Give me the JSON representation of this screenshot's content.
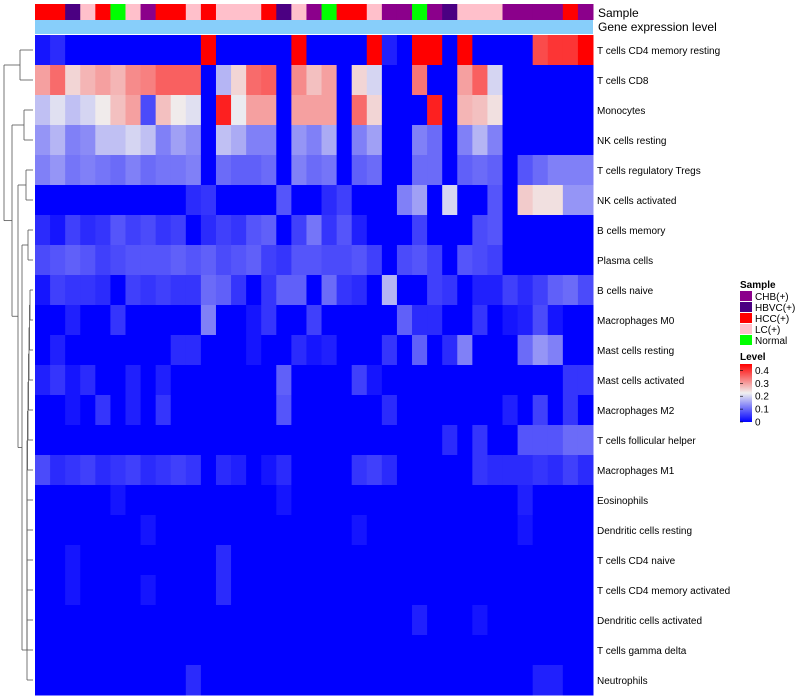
{
  "chart_data": {
    "type": "heatmap",
    "annotation_titles": {
      "sample": "Sample",
      "expression": "Gene expression level"
    },
    "samples": [
      "HCC(+)",
      "HCC(+)",
      "HBVC(+)",
      "LC(+)",
      "HCC(+)",
      "Normal",
      "LC(+)",
      "CHB(+)",
      "HCC(+)",
      "HCC(+)",
      "LC(+)",
      "HCC(+)",
      "LC(+)",
      "LC(+)",
      "LC(+)",
      "HCC(+)",
      "HBVC(+)",
      "LC(+)",
      "CHB(+)",
      "Normal",
      "HCC(+)",
      "HCC(+)",
      "LC(+)",
      "CHB(+)",
      "CHB(+)",
      "Normal",
      "CHB(+)",
      "HBVC(+)",
      "LC(+)",
      "LC(+)",
      "LC(+)",
      "CHB(+)",
      "CHB(+)",
      "CHB(+)",
      "CHB(+)",
      "HCC(+)",
      "CHB(+)"
    ],
    "rows": [
      {
        "name": "T cells CD4 memory resting",
        "values": [
          0.02,
          0.04,
          0.0,
          0.0,
          0.0,
          0.0,
          0.0,
          0.0,
          0.0,
          0.0,
          0.0,
          0.45,
          0.0,
          0.0,
          0.0,
          0.0,
          0.0,
          0.45,
          0.0,
          0.0,
          0.0,
          0.0,
          0.45,
          0.03,
          0.0,
          0.45,
          0.45,
          0.0,
          0.45,
          0.0,
          0.0,
          0.0,
          0.0,
          0.38,
          0.4,
          0.4,
          0.45
        ]
      },
      {
        "name": "T cells CD8",
        "values": [
          0.3,
          0.35,
          0.25,
          0.28,
          0.3,
          0.28,
          0.32,
          0.33,
          0.36,
          0.36,
          0.36,
          0.0,
          0.17,
          0.25,
          0.35,
          0.36,
          0.0,
          0.32,
          0.27,
          0.3,
          0.0,
          0.25,
          0.2,
          0.0,
          0.0,
          0.34,
          0.0,
          0.0,
          0.3,
          0.36,
          0.2,
          0.0,
          0.0,
          0.0,
          0.0,
          0.0,
          0.0
        ]
      },
      {
        "name": "Monocytes",
        "values": [
          0.18,
          0.21,
          0.18,
          0.2,
          0.23,
          0.27,
          0.3,
          0.07,
          0.27,
          0.23,
          0.21,
          0.0,
          0.42,
          0.22,
          0.3,
          0.3,
          0.0,
          0.3,
          0.3,
          0.3,
          0.0,
          0.35,
          0.25,
          0.0,
          0.0,
          0.0,
          0.42,
          0.0,
          0.28,
          0.27,
          0.24,
          0.0,
          0.0,
          0.0,
          0.0,
          0.0,
          0.0
        ]
      },
      {
        "name": "NK cells resting",
        "values": [
          0.14,
          0.17,
          0.12,
          0.13,
          0.18,
          0.18,
          0.2,
          0.18,
          0.12,
          0.15,
          0.13,
          0.0,
          0.18,
          0.16,
          0.12,
          0.12,
          0.0,
          0.14,
          0.12,
          0.16,
          0.0,
          0.12,
          0.15,
          0.0,
          0.0,
          0.12,
          0.1,
          0.0,
          0.12,
          0.17,
          0.12,
          0.0,
          0.0,
          0.0,
          0.0,
          0.0,
          0.0
        ]
      },
      {
        "name": "T cells regulatory  Tregs",
        "values": [
          0.12,
          0.14,
          0.11,
          0.12,
          0.11,
          0.1,
          0.12,
          0.1,
          0.11,
          0.11,
          0.12,
          0.0,
          0.1,
          0.09,
          0.09,
          0.1,
          0.0,
          0.12,
          0.1,
          0.11,
          0.0,
          0.09,
          0.1,
          0.0,
          0.0,
          0.1,
          0.1,
          0.0,
          0.09,
          0.1,
          0.09,
          0.0,
          0.08,
          0.1,
          0.12,
          0.12,
          0.12
        ]
      },
      {
        "name": "NK cells activated",
        "values": [
          0.0,
          0.0,
          0.0,
          0.0,
          0.0,
          0.0,
          0.0,
          0.0,
          0.0,
          0.0,
          0.04,
          0.05,
          0.0,
          0.0,
          0.0,
          0.0,
          0.08,
          0.0,
          0.0,
          0.04,
          0.06,
          0.0,
          0.0,
          0.0,
          0.12,
          0.15,
          0.0,
          0.2,
          0.0,
          0.0,
          0.08,
          0.0,
          0.26,
          0.24,
          0.24,
          0.14,
          0.14
        ]
      },
      {
        "name": "B cells memory",
        "values": [
          0.04,
          0.02,
          0.06,
          0.04,
          0.05,
          0.08,
          0.06,
          0.07,
          0.05,
          0.06,
          0.0,
          0.04,
          0.06,
          0.05,
          0.08,
          0.09,
          0.0,
          0.06,
          0.11,
          0.05,
          0.08,
          0.03,
          0.0,
          0.0,
          0.0,
          0.06,
          0.0,
          0.0,
          0.0,
          0.07,
          0.08,
          0.0,
          0.0,
          0.0,
          0.0,
          0.0,
          0.0
        ]
      },
      {
        "name": "Plasma cells",
        "values": [
          0.07,
          0.08,
          0.09,
          0.08,
          0.06,
          0.07,
          0.08,
          0.08,
          0.08,
          0.09,
          0.08,
          0.09,
          0.07,
          0.08,
          0.09,
          0.06,
          0.05,
          0.08,
          0.08,
          0.07,
          0.07,
          0.08,
          0.06,
          0.0,
          0.07,
          0.08,
          0.06,
          0.0,
          0.08,
          0.07,
          0.06,
          0.0,
          0.0,
          0.0,
          0.0,
          0.0,
          0.0
        ]
      },
      {
        "name": "B cells naive",
        "values": [
          0.02,
          0.06,
          0.05,
          0.05,
          0.04,
          0.0,
          0.06,
          0.05,
          0.06,
          0.05,
          0.05,
          0.1,
          0.09,
          0.05,
          0.0,
          0.05,
          0.09,
          0.09,
          0.0,
          0.1,
          0.05,
          0.04,
          0.0,
          0.17,
          0.0,
          0.0,
          0.06,
          0.05,
          0.0,
          0.03,
          0.03,
          0.06,
          0.04,
          0.06,
          0.09,
          0.1,
          0.07
        ]
      },
      {
        "name": "Macrophages M0",
        "values": [
          0.0,
          0.0,
          0.03,
          0.0,
          0.0,
          0.05,
          0.0,
          0.0,
          0.0,
          0.0,
          0.0,
          0.12,
          0.0,
          0.0,
          0.02,
          0.05,
          0.0,
          0.0,
          0.06,
          0.0,
          0.0,
          0.0,
          0.0,
          0.0,
          0.09,
          0.04,
          0.04,
          0.0,
          0.0,
          0.05,
          0.0,
          0.02,
          0.03,
          0.07,
          0.02,
          0.0,
          0.0
        ]
      },
      {
        "name": "Mast cells resting",
        "values": [
          0.0,
          0.03,
          0.0,
          0.0,
          0.0,
          0.0,
          0.0,
          0.0,
          0.0,
          0.04,
          0.04,
          0.0,
          0.0,
          0.0,
          0.02,
          0.0,
          0.0,
          0.04,
          0.02,
          0.03,
          0.0,
          0.0,
          0.0,
          0.05,
          0.0,
          0.09,
          0.0,
          0.04,
          0.12,
          0.0,
          0.0,
          0.0,
          0.1,
          0.14,
          0.12,
          0.0,
          0.0
        ]
      },
      {
        "name": "Mast cells activated",
        "values": [
          0.03,
          0.05,
          0.02,
          0.04,
          0.0,
          0.0,
          0.03,
          0.0,
          0.03,
          0.0,
          0.0,
          0.0,
          0.0,
          0.0,
          0.0,
          0.0,
          0.09,
          0.0,
          0.0,
          0.0,
          0.0,
          0.06,
          0.02,
          0.0,
          0.0,
          0.0,
          0.0,
          0.0,
          0.0,
          0.0,
          0.0,
          0.0,
          0.0,
          0.0,
          0.0,
          0.05,
          0.05
        ]
      },
      {
        "name": "Macrophages M2",
        "values": [
          0.0,
          0.0,
          0.02,
          0.0,
          0.05,
          0.0,
          0.03,
          0.0,
          0.05,
          0.0,
          0.0,
          0.0,
          0.0,
          0.0,
          0.0,
          0.0,
          0.08,
          0.0,
          0.0,
          0.0,
          0.0,
          0.0,
          0.0,
          0.04,
          0.0,
          0.0,
          0.0,
          0.0,
          0.0,
          0.0,
          0.0,
          0.03,
          0.0,
          0.06,
          0.0,
          0.05,
          0.0
        ]
      },
      {
        "name": "T cells follicular helper",
        "values": [
          0.0,
          0.0,
          0.0,
          0.0,
          0.0,
          0.0,
          0.0,
          0.0,
          0.0,
          0.0,
          0.0,
          0.0,
          0.0,
          0.0,
          0.0,
          0.0,
          0.0,
          0.0,
          0.0,
          0.0,
          0.0,
          0.0,
          0.0,
          0.0,
          0.0,
          0.0,
          0.0,
          0.04,
          0.0,
          0.05,
          0.0,
          0.0,
          0.08,
          0.08,
          0.08,
          0.1,
          0.1
        ]
      },
      {
        "name": "Macrophages M1",
        "values": [
          0.07,
          0.04,
          0.05,
          0.06,
          0.04,
          0.05,
          0.06,
          0.04,
          0.05,
          0.06,
          0.05,
          0.0,
          0.04,
          0.03,
          0.0,
          0.02,
          0.04,
          0.0,
          0.0,
          0.0,
          0.0,
          0.05,
          0.06,
          0.04,
          0.0,
          0.0,
          0.0,
          0.0,
          0.0,
          0.05,
          0.04,
          0.04,
          0.04,
          0.05,
          0.04,
          0.06,
          0.04
        ]
      },
      {
        "name": "Eosinophils",
        "values": [
          0.0,
          0.0,
          0.0,
          0.0,
          0.0,
          0.02,
          0.0,
          0.0,
          0.0,
          0.0,
          0.0,
          0.0,
          0.0,
          0.0,
          0.0,
          0.0,
          0.02,
          0.0,
          0.0,
          0.0,
          0.0,
          0.0,
          0.0,
          0.0,
          0.0,
          0.0,
          0.0,
          0.0,
          0.0,
          0.0,
          0.0,
          0.0,
          0.03,
          0.0,
          0.0,
          0.0,
          0.0
        ]
      },
      {
        "name": "Dendritic cells resting",
        "values": [
          0.0,
          0.0,
          0.0,
          0.0,
          0.0,
          0.0,
          0.0,
          0.02,
          0.0,
          0.0,
          0.0,
          0.0,
          0.0,
          0.0,
          0.0,
          0.0,
          0.0,
          0.0,
          0.0,
          0.0,
          0.0,
          0.02,
          0.0,
          0.0,
          0.0,
          0.0,
          0.0,
          0.0,
          0.0,
          0.0,
          0.0,
          0.0,
          0.02,
          0.0,
          0.0,
          0.0,
          0.0
        ]
      },
      {
        "name": "T cells CD4 naive",
        "values": [
          0.0,
          0.0,
          0.02,
          0.0,
          0.0,
          0.0,
          0.0,
          0.0,
          0.0,
          0.0,
          0.0,
          0.0,
          0.04,
          0.0,
          0.0,
          0.0,
          0.0,
          0.0,
          0.0,
          0.0,
          0.0,
          0.0,
          0.0,
          0.0,
          0.0,
          0.0,
          0.0,
          0.0,
          0.0,
          0.0,
          0.0,
          0.0,
          0.0,
          0.0,
          0.0,
          0.0,
          0.0
        ]
      },
      {
        "name": "T cells CD4 memory activated",
        "values": [
          0.0,
          0.0,
          0.02,
          0.0,
          0.0,
          0.0,
          0.0,
          0.02,
          0.0,
          0.0,
          0.0,
          0.0,
          0.04,
          0.0,
          0.0,
          0.0,
          0.0,
          0.0,
          0.0,
          0.0,
          0.0,
          0.0,
          0.0,
          0.0,
          0.0,
          0.0,
          0.0,
          0.0,
          0.0,
          0.0,
          0.0,
          0.0,
          0.0,
          0.0,
          0.0,
          0.0,
          0.0
        ]
      },
      {
        "name": "Dendritic cells activated",
        "values": [
          0.0,
          0.0,
          0.0,
          0.0,
          0.0,
          0.0,
          0.0,
          0.0,
          0.0,
          0.0,
          0.0,
          0.0,
          0.0,
          0.0,
          0.0,
          0.0,
          0.0,
          0.0,
          0.0,
          0.0,
          0.0,
          0.0,
          0.0,
          0.0,
          0.0,
          0.03,
          0.0,
          0.0,
          0.0,
          0.02,
          0.0,
          0.0,
          0.0,
          0.0,
          0.0,
          0.0,
          0.0
        ]
      },
      {
        "name": "T cells gamma delta",
        "values": [
          0.0,
          0.0,
          0.0,
          0.0,
          0.0,
          0.0,
          0.0,
          0.0,
          0.0,
          0.0,
          0.0,
          0.0,
          0.0,
          0.0,
          0.0,
          0.0,
          0.0,
          0.0,
          0.0,
          0.0,
          0.0,
          0.0,
          0.0,
          0.0,
          0.0,
          0.0,
          0.0,
          0.0,
          0.0,
          0.0,
          0.0,
          0.0,
          0.0,
          0.0,
          0.0,
          0.0,
          0.0
        ]
      },
      {
        "name": "Neutrophils",
        "values": [
          0.0,
          0.0,
          0.0,
          0.0,
          0.0,
          0.0,
          0.0,
          0.0,
          0.0,
          0.0,
          0.04,
          0.0,
          0.0,
          0.0,
          0.0,
          0.0,
          0.0,
          0.0,
          0.0,
          0.0,
          0.0,
          0.0,
          0.0,
          0.0,
          0.0,
          0.0,
          0.0,
          0.0,
          0.0,
          0.0,
          0.0,
          0.0,
          0.0,
          0.03,
          0.03,
          0.0,
          0.0
        ]
      }
    ],
    "legend_sample": {
      "title": "Sample",
      "items": [
        {
          "label": "CHB(+)",
          "color": "#8B008B"
        },
        {
          "label": "HBVC(+)",
          "color": "#4B0082"
        },
        {
          "label": "HCC(+)",
          "color": "#FF0000"
        },
        {
          "label": "LC(+)",
          "color": "#FFC0CB"
        },
        {
          "label": "Normal",
          "color": "#00FF00"
        }
      ]
    },
    "legend_level": {
      "title": "Level",
      "ticks": [
        "0.4",
        "0.3",
        "0.2",
        "0.1",
        "0"
      ],
      "min": 0,
      "max": 0.45
    },
    "colors": {
      "low": "#0000FF",
      "mid": "#F0F0F0",
      "high": "#FF0000",
      "expression_bar": "#87CEFA"
    },
    "dendrogram": "row clustering"
  }
}
